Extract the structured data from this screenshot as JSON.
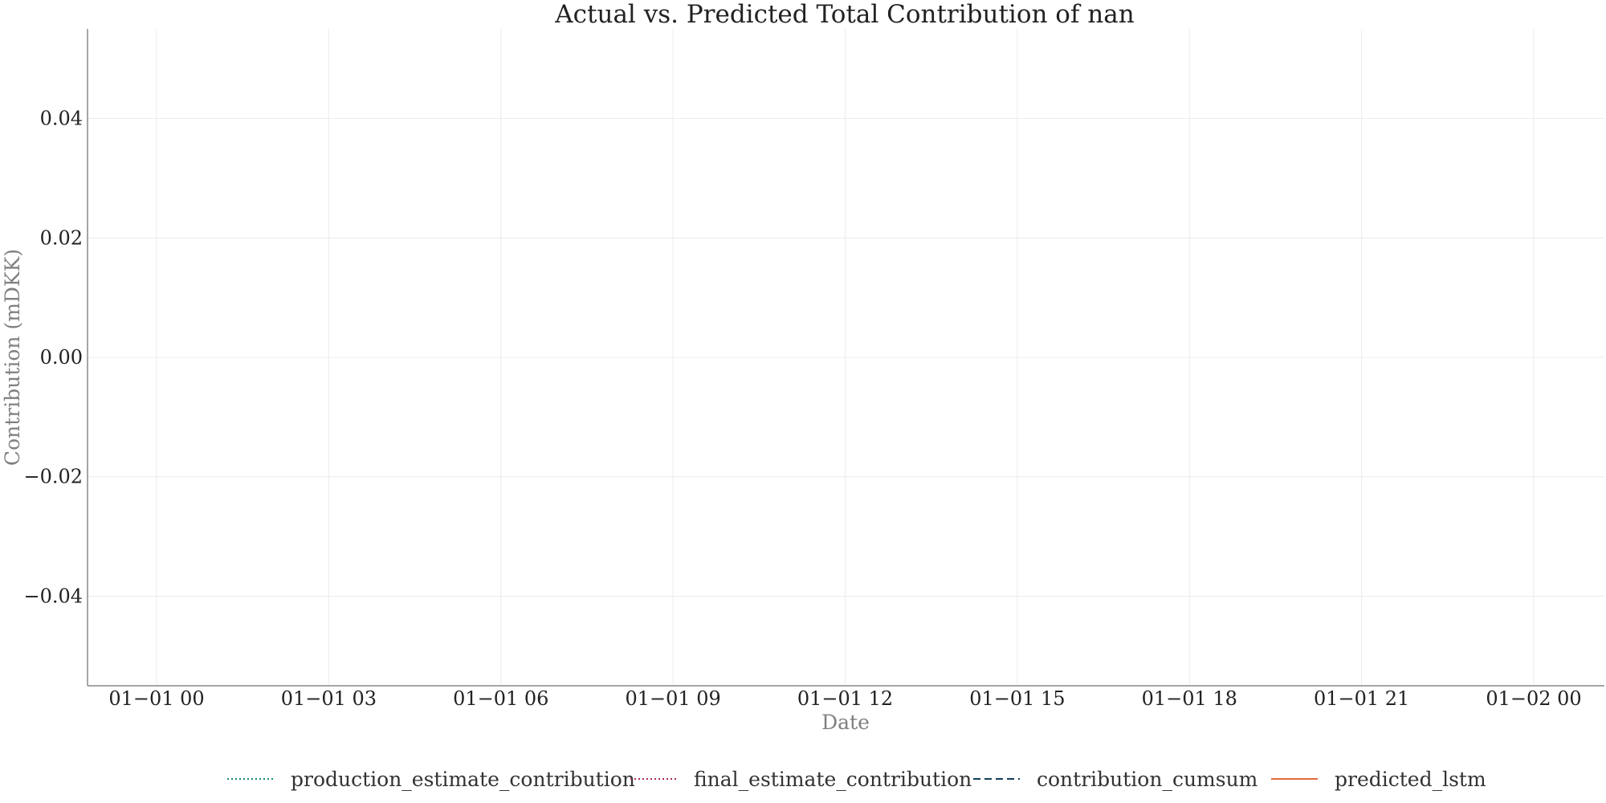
{
  "chart_data": {
    "type": "line",
    "title": "Actual vs. Predicted Total Contribution of nan",
    "xlabel": "Date",
    "ylabel": "Contribution (mDKK)",
    "x_ticks": [
      "01−01 00",
      "01−01 03",
      "01−01 06",
      "01−01 09",
      "01−01 12",
      "01−01 15",
      "01−01 18",
      "01−01 21",
      "01−02 00"
    ],
    "x_range": [
      "01-01 00:00",
      "01-02 00:00"
    ],
    "y_ticks": [
      0.04,
      0.02,
      0.0,
      -0.02,
      -0.04
    ],
    "y_tick_labels": [
      "0.04",
      "0.02",
      "0.00",
      "−0.02",
      "−0.04"
    ],
    "ylim": [
      -0.055,
      0.055
    ],
    "grid": true,
    "legend_position": "bottom",
    "series": [
      {
        "name": "production_estimate_contribution",
        "style": "dotted",
        "color": "#1a8a7a",
        "values": []
      },
      {
        "name": "final_estimate_contribution",
        "style": "dotted",
        "color": "#b03050",
        "values": []
      },
      {
        "name": "contribution_cumsum",
        "style": "dashed",
        "color": "#0f3d5a",
        "values": []
      },
      {
        "name": "predicted_lstm",
        "style": "solid",
        "color": "#e06a3a",
        "values": []
      }
    ]
  }
}
